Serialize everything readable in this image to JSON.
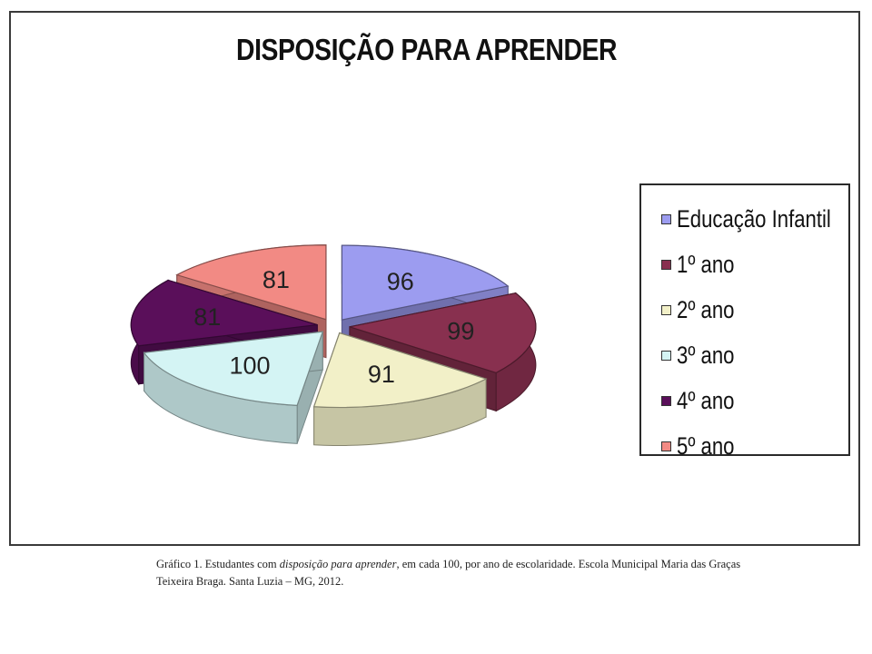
{
  "chart_data": {
    "type": "pie",
    "title": "DISPOSIÇÃO PARA APRENDER",
    "categories": [
      "Educação Infantil",
      "1º ano",
      "2º ano",
      "3º ano",
      "4º ano",
      "5º ano"
    ],
    "values": [
      96,
      99,
      91,
      100,
      81,
      81
    ],
    "colors": [
      "#9c9cf0",
      "#88304f",
      "#f2f0c8",
      "#d4f4f4",
      "#5a0f5a",
      "#f28a84"
    ],
    "legend_position": "right",
    "style": "3d-exploded"
  },
  "caption": {
    "prefix": "Gráfico 1. Estudantes com ",
    "emphasis": "disposição para aprender",
    "suffix": ", em cada 100, por ano de escolaridade. Escola Municipal Maria das Graças Teixeira Braga. Santa Luzia – MG, 2012."
  }
}
